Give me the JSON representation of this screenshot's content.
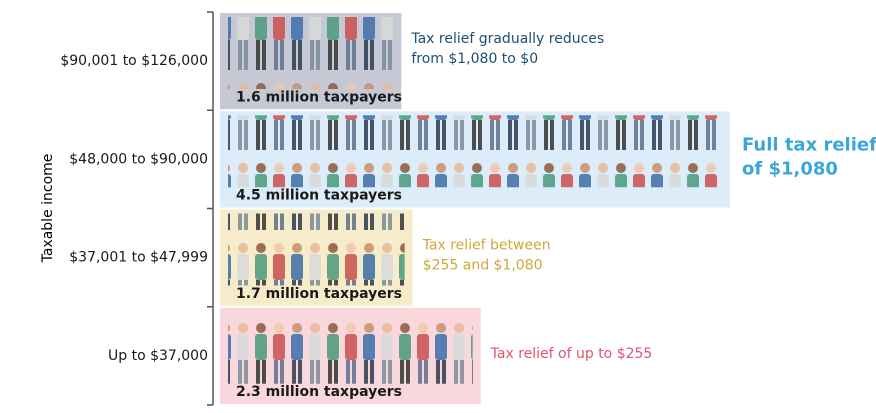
{
  "chart_data": {
    "type": "bar",
    "orientation": "horizontal",
    "y_label": "Taxable income",
    "categories": [
      "$90,001 to $126,000",
      "$48,000 to $90,000",
      "$37,001 to $47,999",
      "Up to $37,000"
    ],
    "values": [
      1.6,
      4.5,
      1.7,
      2.3
    ],
    "value_labels": [
      "1.6 million taxpayers",
      "4.5 million taxpayers",
      "1.7 million taxpayers",
      "2.3 million taxpayers"
    ],
    "colors": [
      "#c6c9d4",
      "#dcedf9",
      "#f6ecc9",
      "#f8d8dd"
    ],
    "annotations": [
      {
        "lines": [
          "Tax relief gradually reduces",
          "from $1,080 to $0"
        ],
        "color": "#1f4f70",
        "emphasis": false
      },
      {
        "lines": [
          "Full tax relief",
          "of $1,080"
        ],
        "color": "#3aa7d9",
        "emphasis": true
      },
      {
        "lines": [
          "Tax relief between",
          "$255 and $1,080"
        ],
        "color": "#d2a73a",
        "emphasis": false
      },
      {
        "lines": [
          "Tax relief of up to $255"
        ],
        "color": "#e2546f",
        "emphasis": false
      }
    ]
  }
}
